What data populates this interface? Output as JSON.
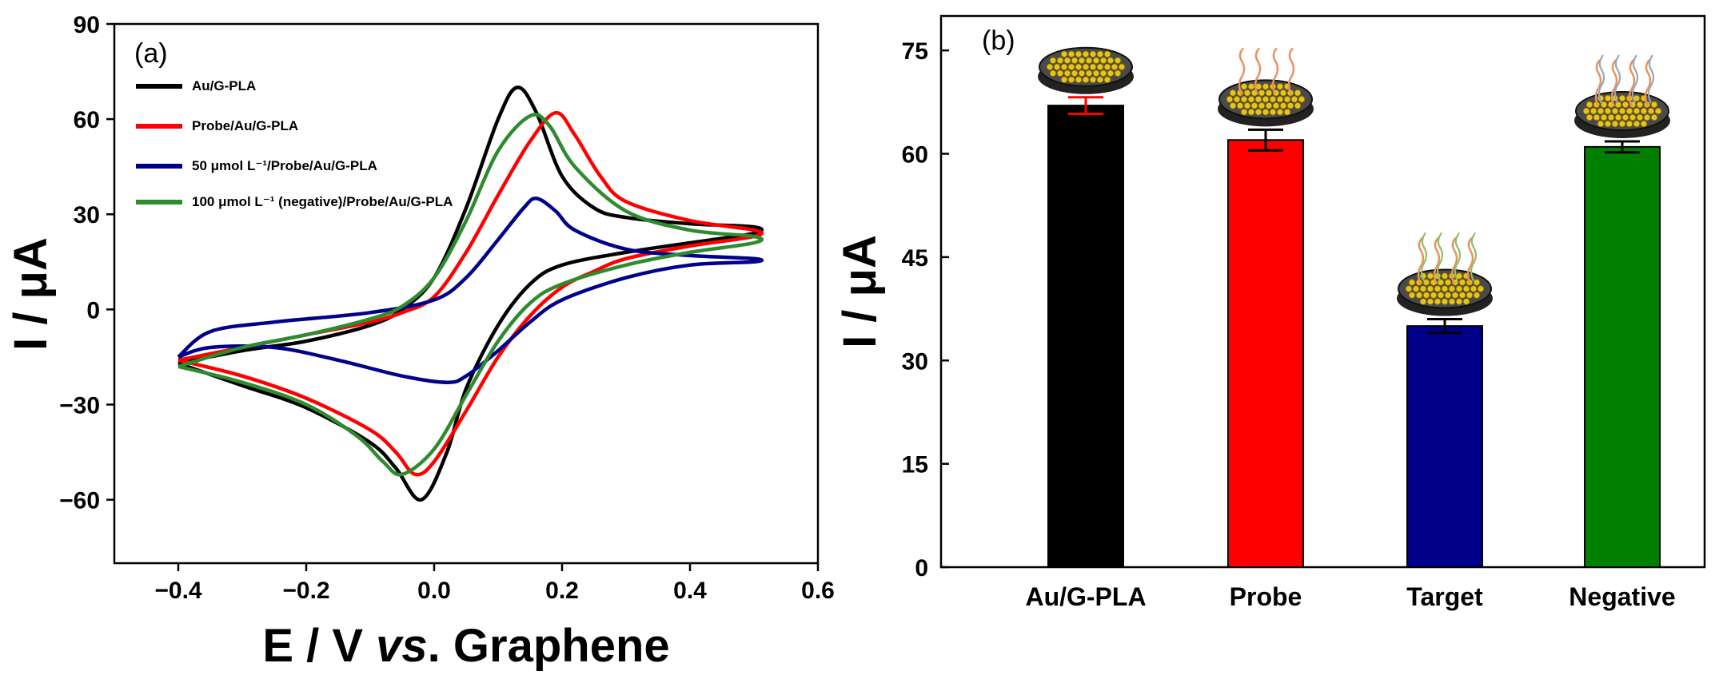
{
  "figure": {
    "panel_a_label": "(a)",
    "panel_b_label": "(b)"
  },
  "chart_data": [
    {
      "type": "line",
      "panel": "(a)",
      "xlabel_parts": [
        "E / V ",
        "vs",
        ". Graphene"
      ],
      "ylabel": "I / μA",
      "xlim": [
        -0.5,
        0.6
      ],
      "ylim": [
        -80,
        90
      ],
      "xticks": [
        -0.4,
        -0.2,
        0.0,
        0.2,
        0.4,
        0.6
      ],
      "xtick_labels": [
        "−0.4",
        "−0.2",
        "0.0",
        "0.2",
        "0.4",
        "0.6"
      ],
      "yticks": [
        -60,
        -30,
        0,
        30,
        60,
        90
      ],
      "ytick_labels": [
        "−60",
        "−30",
        "0",
        "30",
        "60",
        "90"
      ],
      "legend_position": "top-left",
      "series": [
        {
          "name": "Au/G-PLA",
          "color": "#000000",
          "points": [
            [
              -0.4,
              -17
            ],
            [
              -0.3,
              -13
            ],
            [
              -0.2,
              -10
            ],
            [
              -0.1,
              -5
            ],
            [
              -0.05,
              0
            ],
            [
              0.0,
              10
            ],
            [
              0.05,
              32
            ],
            [
              0.1,
              60
            ],
            [
              0.13,
              70
            ],
            [
              0.16,
              62
            ],
            [
              0.2,
              42
            ],
            [
              0.25,
              32
            ],
            [
              0.3,
              29
            ],
            [
              0.4,
              27
            ],
            [
              0.5,
              26
            ],
            [
              0.5,
              24
            ],
            [
              0.4,
              21
            ],
            [
              0.3,
              18
            ],
            [
              0.2,
              14
            ],
            [
              0.15,
              8
            ],
            [
              0.1,
              -5
            ],
            [
              0.05,
              -25
            ],
            [
              0.02,
              -45
            ],
            [
              -0.02,
              -60
            ],
            [
              -0.06,
              -50
            ],
            [
              -0.1,
              -42
            ],
            [
              -0.2,
              -31
            ],
            [
              -0.3,
              -24
            ],
            [
              -0.4,
              -17
            ]
          ]
        },
        {
          "name": "Probe/Au/G-PLA",
          "color": "#ff0000",
          "points": [
            [
              -0.4,
              -16
            ],
            [
              -0.3,
              -12
            ],
            [
              -0.2,
              -8
            ],
            [
              -0.1,
              -4
            ],
            [
              -0.05,
              -1
            ],
            [
              0.0,
              4
            ],
            [
              0.05,
              18
            ],
            [
              0.1,
              36
            ],
            [
              0.15,
              53
            ],
            [
              0.19,
              62
            ],
            [
              0.22,
              55
            ],
            [
              0.26,
              42
            ],
            [
              0.3,
              34
            ],
            [
              0.4,
              28
            ],
            [
              0.5,
              25
            ],
            [
              0.5,
              23
            ],
            [
              0.4,
              20
            ],
            [
              0.3,
              16
            ],
            [
              0.25,
              12
            ],
            [
              0.2,
              7
            ],
            [
              0.15,
              -2
            ],
            [
              0.1,
              -15
            ],
            [
              0.05,
              -32
            ],
            [
              0.0,
              -48
            ],
            [
              -0.03,
              -52
            ],
            [
              -0.06,
              -45
            ],
            [
              -0.1,
              -38
            ],
            [
              -0.2,
              -28
            ],
            [
              -0.3,
              -21
            ],
            [
              -0.4,
              -16
            ]
          ]
        },
        {
          "name": "50 μmol L⁻¹/Probe/Au/G-PLA",
          "color": "#00008b",
          "points": [
            [
              -0.4,
              -15
            ],
            [
              -0.35,
              -7
            ],
            [
              -0.25,
              -4
            ],
            [
              -0.1,
              -1
            ],
            [
              0.0,
              3
            ],
            [
              0.05,
              10
            ],
            [
              0.1,
              22
            ],
            [
              0.14,
              32
            ],
            [
              0.16,
              35
            ],
            [
              0.19,
              31
            ],
            [
              0.22,
              25
            ],
            [
              0.3,
              19
            ],
            [
              0.4,
              17
            ],
            [
              0.5,
              16
            ],
            [
              0.5,
              15
            ],
            [
              0.4,
              14
            ],
            [
              0.3,
              10
            ],
            [
              0.2,
              3
            ],
            [
              0.15,
              -4
            ],
            [
              0.1,
              -13
            ],
            [
              0.05,
              -21
            ],
            [
              0.02,
              -23
            ],
            [
              -0.05,
              -21
            ],
            [
              -0.15,
              -16
            ],
            [
              -0.25,
              -12
            ],
            [
              -0.35,
              -12
            ],
            [
              -0.4,
              -15
            ]
          ]
        },
        {
          "name": "100 μmol L⁻¹ (negative)/Probe/Au/G-PLA",
          "color": "#2e8b2e",
          "points": [
            [
              -0.4,
              -18
            ],
            [
              -0.3,
              -12
            ],
            [
              -0.2,
              -8
            ],
            [
              -0.1,
              -3
            ],
            [
              -0.05,
              1
            ],
            [
              0.0,
              10
            ],
            [
              0.05,
              28
            ],
            [
              0.1,
              50
            ],
            [
              0.15,
              61
            ],
            [
              0.18,
              58
            ],
            [
              0.22,
              45
            ],
            [
              0.3,
              31
            ],
            [
              0.4,
              25
            ],
            [
              0.5,
              23
            ],
            [
              0.5,
              21
            ],
            [
              0.4,
              18
            ],
            [
              0.3,
              14
            ],
            [
              0.2,
              8
            ],
            [
              0.15,
              2
            ],
            [
              0.1,
              -10
            ],
            [
              0.05,
              -27
            ],
            [
              0.0,
              -44
            ],
            [
              -0.05,
              -52
            ],
            [
              -0.08,
              -48
            ],
            [
              -0.12,
              -40
            ],
            [
              -0.2,
              -30
            ],
            [
              -0.3,
              -23
            ],
            [
              -0.4,
              -18
            ]
          ]
        }
      ]
    },
    {
      "type": "bar",
      "panel": "(b)",
      "categories": [
        "Au/G-PLA",
        "Probe",
        "Target",
        "Negative"
      ],
      "ylabel": "I / μA",
      "ylim": [
        0,
        80
      ],
      "yticks": [
        0,
        15,
        30,
        45,
        60,
        75
      ],
      "ytick_labels": [
        "0",
        "15",
        "30",
        "45",
        "60",
        "75"
      ],
      "series": [
        {
          "values": [
            67,
            62,
            35,
            61
          ],
          "errors": [
            1.2,
            1.5,
            1.0,
            0.8
          ],
          "colors": [
            "#000000",
            "#ff0000",
            "#00008b",
            "#008000"
          ],
          "error_colors": [
            "#ff0000",
            "#000000",
            "#000000",
            "#000000"
          ]
        }
      ]
    }
  ]
}
